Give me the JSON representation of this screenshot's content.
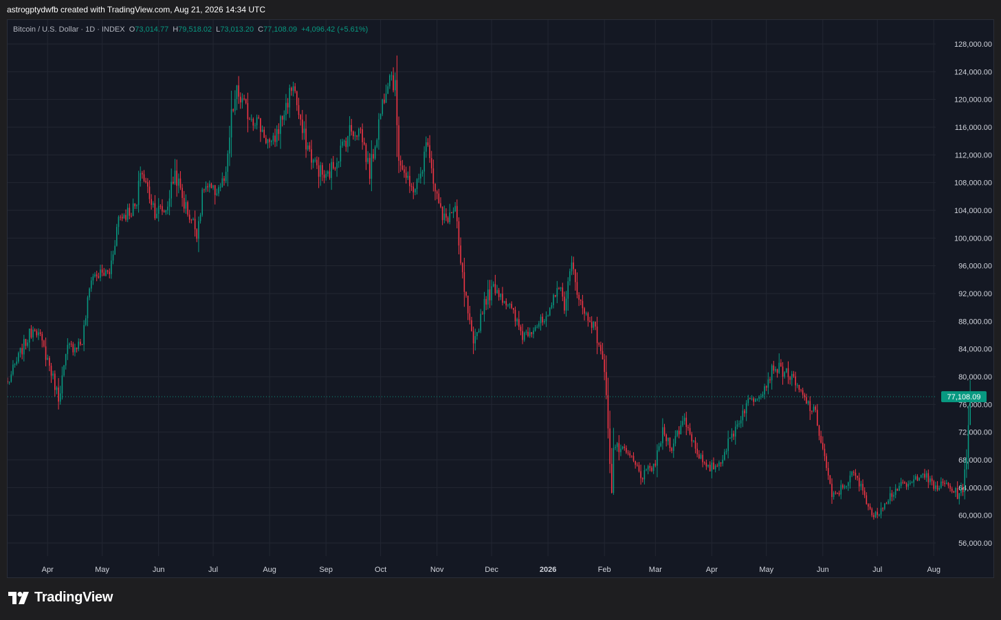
{
  "header": {
    "caption": "astrogptydwfb created with TradingView.com, Aug 21, 2026 14:34 UTC"
  },
  "legend": {
    "symbol": "Bitcoin / U.S. Dollar · 1D · INDEX",
    "o_label": "O",
    "o_value": "73,014.77",
    "h_label": "H",
    "h_value": "79,518.02",
    "l_label": "L",
    "l_value": "73,013.20",
    "c_label": "C",
    "c_value": "77,108.09",
    "change": "+4,096.42 (+5.61%)"
  },
  "price_tag": "77,108.09",
  "brand": {
    "name": "TradingView"
  },
  "colors": {
    "up": "#089981",
    "down": "#f23645",
    "background": "#141823",
    "grid": "#232733"
  },
  "chart_data": {
    "type": "candlestick",
    "symbol": "Bitcoin / U.S. Dollar",
    "interval": "1D",
    "ylim": [
      54000,
      130000
    ],
    "yticks": [
      56000,
      60000,
      64000,
      68000,
      72000,
      76000,
      80000,
      84000,
      88000,
      92000,
      96000,
      100000,
      104000,
      108000,
      112000,
      116000,
      120000,
      124000,
      128000
    ],
    "ytick_labels": [
      "56,000.00",
      "60,000.00",
      "64,000.00",
      "68,000.00",
      "72,000.00",
      "76,000.00",
      "80,000.00",
      "84,000.00",
      "88,000.00",
      "92,000.00",
      "96,000.00",
      "100,000.00",
      "104,000.00",
      "108,000.00",
      "112,000.00",
      "116,000.00",
      "120,000.00",
      "124,000.00",
      "128,000.00"
    ],
    "xlim": [
      "2025-03-10",
      "2026-08-30"
    ],
    "xticks": [
      {
        "date": "2025-04-01",
        "label": "Apr"
      },
      {
        "date": "2025-05-01",
        "label": "May"
      },
      {
        "date": "2025-06-01",
        "label": "Jun"
      },
      {
        "date": "2025-07-01",
        "label": "Jul"
      },
      {
        "date": "2025-08-01",
        "label": "Aug"
      },
      {
        "date": "2025-09-01",
        "label": "Sep"
      },
      {
        "date": "2025-10-01",
        "label": "Oct"
      },
      {
        "date": "2025-11-01",
        "label": "Nov"
      },
      {
        "date": "2025-12-01",
        "label": "Dec"
      },
      {
        "date": "2026-01-01",
        "label": "2026",
        "bold": true
      },
      {
        "date": "2026-02-01",
        "label": "Feb"
      },
      {
        "date": "2026-03-01",
        "label": "Mar"
      },
      {
        "date": "2026-04-01",
        "label": "Apr"
      },
      {
        "date": "2026-05-01",
        "label": "May"
      },
      {
        "date": "2026-06-01",
        "label": "Jun"
      },
      {
        "date": "2026-07-01",
        "label": "Jul"
      },
      {
        "date": "2026-08-01",
        "label": "Aug"
      }
    ],
    "close_series": [
      [
        "2025-03-10",
        79000
      ],
      [
        "2025-03-18",
        84000
      ],
      [
        "2025-03-25",
        87500
      ],
      [
        "2025-04-01",
        82500
      ],
      [
        "2025-04-07",
        77000
      ],
      [
        "2025-04-12",
        84000
      ],
      [
        "2025-04-20",
        85000
      ],
      [
        "2025-04-25",
        94500
      ],
      [
        "2025-05-05",
        95000
      ],
      [
        "2025-05-10",
        103000
      ],
      [
        "2025-05-20",
        104500
      ],
      [
        "2025-05-22",
        110000
      ],
      [
        "2025-05-30",
        104000
      ],
      [
        "2025-06-05",
        104000
      ],
      [
        "2025-06-10",
        109500
      ],
      [
        "2025-06-15",
        105000
      ],
      [
        "2025-06-22",
        101000
      ],
      [
        "2025-06-26",
        107500
      ],
      [
        "2025-07-01",
        106500
      ],
      [
        "2025-07-08",
        108500
      ],
      [
        "2025-07-11",
        117500
      ],
      [
        "2025-07-14",
        121000
      ],
      [
        "2025-07-20",
        118000
      ],
      [
        "2025-07-25",
        117000
      ],
      [
        "2025-08-02",
        113000
      ],
      [
        "2025-08-10",
        119000
      ],
      [
        "2025-08-14",
        122500
      ],
      [
        "2025-08-18",
        116000
      ],
      [
        "2025-08-25",
        111000
      ],
      [
        "2025-09-01",
        108500
      ],
      [
        "2025-09-06",
        111000
      ],
      [
        "2025-09-14",
        115500
      ],
      [
        "2025-09-20",
        115500
      ],
      [
        "2025-09-25",
        109500
      ],
      [
        "2025-10-02",
        119500
      ],
      [
        "2025-10-06",
        124500
      ],
      [
        "2025-10-09",
        121500
      ],
      [
        "2025-10-11",
        112000
      ],
      [
        "2025-10-17",
        107000
      ],
      [
        "2025-10-22",
        108000
      ],
      [
        "2025-10-27",
        114500
      ],
      [
        "2025-10-30",
        108500
      ],
      [
        "2025-11-04",
        102500
      ],
      [
        "2025-11-11",
        104000
      ],
      [
        "2025-11-14",
        96000
      ],
      [
        "2025-11-21",
        84000
      ],
      [
        "2025-11-27",
        91000
      ],
      [
        "2025-12-03",
        93000
      ],
      [
        "2025-12-10",
        90500
      ],
      [
        "2025-12-18",
        86000
      ],
      [
        "2025-12-25",
        87500
      ],
      [
        "2026-01-01",
        88000
      ],
      [
        "2026-01-06",
        93500
      ],
      [
        "2026-01-10",
        90500
      ],
      [
        "2026-01-14",
        96000
      ],
      [
        "2026-01-20",
        89500
      ],
      [
        "2026-01-25",
        88000
      ],
      [
        "2026-01-30",
        84000
      ],
      [
        "2026-02-02",
        78000
      ],
      [
        "2026-02-05",
        63000
      ],
      [
        "2026-02-06",
        70000
      ],
      [
        "2026-02-15",
        68500
      ],
      [
        "2026-02-22",
        65500
      ],
      [
        "2026-03-01",
        67500
      ],
      [
        "2026-03-05",
        72000
      ],
      [
        "2026-03-10",
        70000
      ],
      [
        "2026-03-17",
        74000
      ],
      [
        "2026-03-22",
        70500
      ],
      [
        "2026-03-29",
        66500
      ],
      [
        "2026-04-05",
        67500
      ],
      [
        "2026-04-12",
        71500
      ],
      [
        "2026-04-20",
        76000
      ],
      [
        "2026-04-30",
        78500
      ],
      [
        "2026-05-05",
        81500
      ],
      [
        "2026-05-13",
        80500
      ],
      [
        "2026-05-20",
        77500
      ],
      [
        "2026-05-28",
        74500
      ],
      [
        "2026-06-03",
        67000
      ],
      [
        "2026-06-06",
        62500
      ],
      [
        "2026-06-10",
        63500
      ],
      [
        "2026-06-18",
        66000
      ],
      [
        "2026-06-24",
        63000
      ],
      [
        "2026-06-29",
        59500
      ],
      [
        "2026-07-05",
        62000
      ],
      [
        "2026-07-12",
        64000
      ],
      [
        "2026-07-20",
        64500
      ],
      [
        "2026-07-25",
        66500
      ],
      [
        "2026-08-01",
        64000
      ],
      [
        "2026-08-08",
        64500
      ],
      [
        "2026-08-14",
        63000
      ],
      [
        "2026-08-17",
        64000
      ],
      [
        "2026-08-19",
        68000
      ],
      [
        "2026-08-20",
        73000
      ],
      [
        "2026-08-21",
        77108.09
      ]
    ],
    "last_bar": {
      "date": "2026-08-21",
      "open": 73014.77,
      "high": 79518.02,
      "low": 73013.2,
      "close": 77108.09
    },
    "last_price": 77108.09
  }
}
